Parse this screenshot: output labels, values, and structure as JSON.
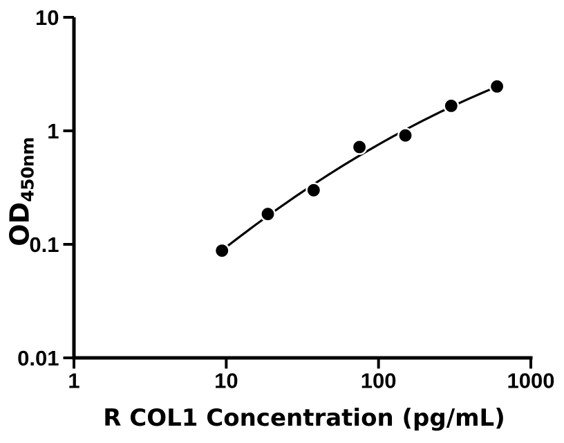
{
  "chart_data": {
    "type": "scatter",
    "xlabel": "R COL1 Concentration (pg/mL)",
    "ylabel": {
      "main": "OD",
      "sub": "450nm"
    },
    "x_scale": "log10",
    "y_scale": "log10",
    "xlim": [
      1,
      1000
    ],
    "ylim": [
      0.01,
      10
    ],
    "x_tick_values": [
      1,
      10,
      100,
      1000
    ],
    "x_tick_labels": [
      "1",
      "10",
      "100",
      "1000"
    ],
    "y_tick_values": [
      0.01,
      0.1,
      1,
      10
    ],
    "y_tick_labels": [
      "0.01",
      "0.1",
      "1",
      "10"
    ],
    "grid": false,
    "legend": null,
    "series": [
      {
        "name": "standard-curve-points",
        "marker": "circle",
        "points": [
          {
            "x": 9.375,
            "y": 0.088
          },
          {
            "x": 18.75,
            "y": 0.185
          },
          {
            "x": 37.5,
            "y": 0.3
          },
          {
            "x": 75,
            "y": 0.72
          },
          {
            "x": 150,
            "y": 0.91
          },
          {
            "x": 300,
            "y": 1.66
          },
          {
            "x": 600,
            "y": 2.46
          }
        ]
      }
    ],
    "fit_curve": {
      "type": "quadratic_loglog",
      "description": "log10(y) = a + b*(log10(x)-u0) + c*(log10(x)-u0)^2",
      "a": -0.2185,
      "b": 0.7982,
      "c": -0.1395,
      "u0": 1.875,
      "u_range": [
        0.9722,
        2.7782
      ]
    },
    "colors": {
      "marker": "#000000",
      "marker_halo": "#ffffff",
      "line": "#000000",
      "axis": "#000000",
      "text": "#000000",
      "background": "#ffffff"
    }
  }
}
